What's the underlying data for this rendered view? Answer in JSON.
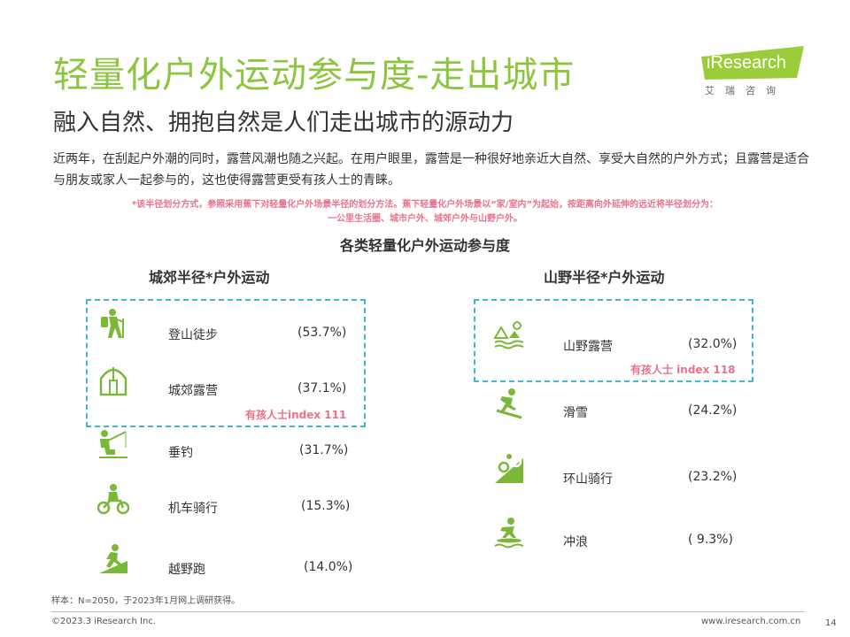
{
  "header": {
    "title": "轻量化户外运动参与度-走出城市",
    "subtitle": "融入自然、拥抱自然是人们走出城市的源动力",
    "logo_text": "iResearch",
    "logo_sub": "艾瑞咨询"
  },
  "intro": "近两年，在刮起户外潮的同时，露营风潮也随之兴起。在用户眼里，露营是一种很好地亲近大自然、享受大自然的户外方式；且露营是适合与朋友或家人一起参与的，这也使得露营更受有孩人士的青睐。",
  "note_line1": "*该半径划分方式，参照采用蕉下对轻量化户外场景半径的划分方法。蕉下轻量化户外场景以“家/室内”为起始，按距离向外延伸的远近将半径划分为：",
  "note_line2": "一公里生活圈、城市户外、城郊户外与山野户外。",
  "chart_title": "各类轻量化户外运动参与度",
  "left_group": {
    "title": "城郊半径*户外运动",
    "index_label": "有孩人士index 111",
    "items": [
      {
        "icon": "hiking-icon",
        "label": "登山徒步",
        "value": "(53.7%)"
      },
      {
        "icon": "tent-icon",
        "label": "城郊露营",
        "value": "(37.1%)"
      },
      {
        "icon": "fishing-icon",
        "label": "垂钓",
        "value": "(31.7%)"
      },
      {
        "icon": "motorcycle-icon",
        "label": "机车骑行",
        "value": "(15.3%)"
      },
      {
        "icon": "trail-running-icon",
        "label": "越野跑",
        "value": "(14.0%)"
      }
    ]
  },
  "right_group": {
    "title": "山野半径*户外运动",
    "index_label": "有孩人士 index 118",
    "items": [
      {
        "icon": "mountain-camping-icon",
        "label": "山野露营",
        "value": "(32.0%)"
      },
      {
        "icon": "skiing-icon",
        "label": "滑雪",
        "value": "(24.2%)"
      },
      {
        "icon": "mountain-biking-icon",
        "label": "环山骑行",
        "value": "(23.2%)"
      },
      {
        "icon": "surfing-icon",
        "label": "冲浪",
        "value": "( 9.3%)"
      }
    ]
  },
  "footnote": "样本：N=2050，于2023年1月网上调研获得。",
  "footer": {
    "copyright": "©2023.3 iResearch Inc.",
    "website": "www.iresearch.com.cn",
    "page": "14"
  },
  "colors": {
    "title_green": "#8cc63f",
    "icon_green": "#7bb83a",
    "dash_blue": "#3fb8cf",
    "index_pink": "#e8738a"
  }
}
